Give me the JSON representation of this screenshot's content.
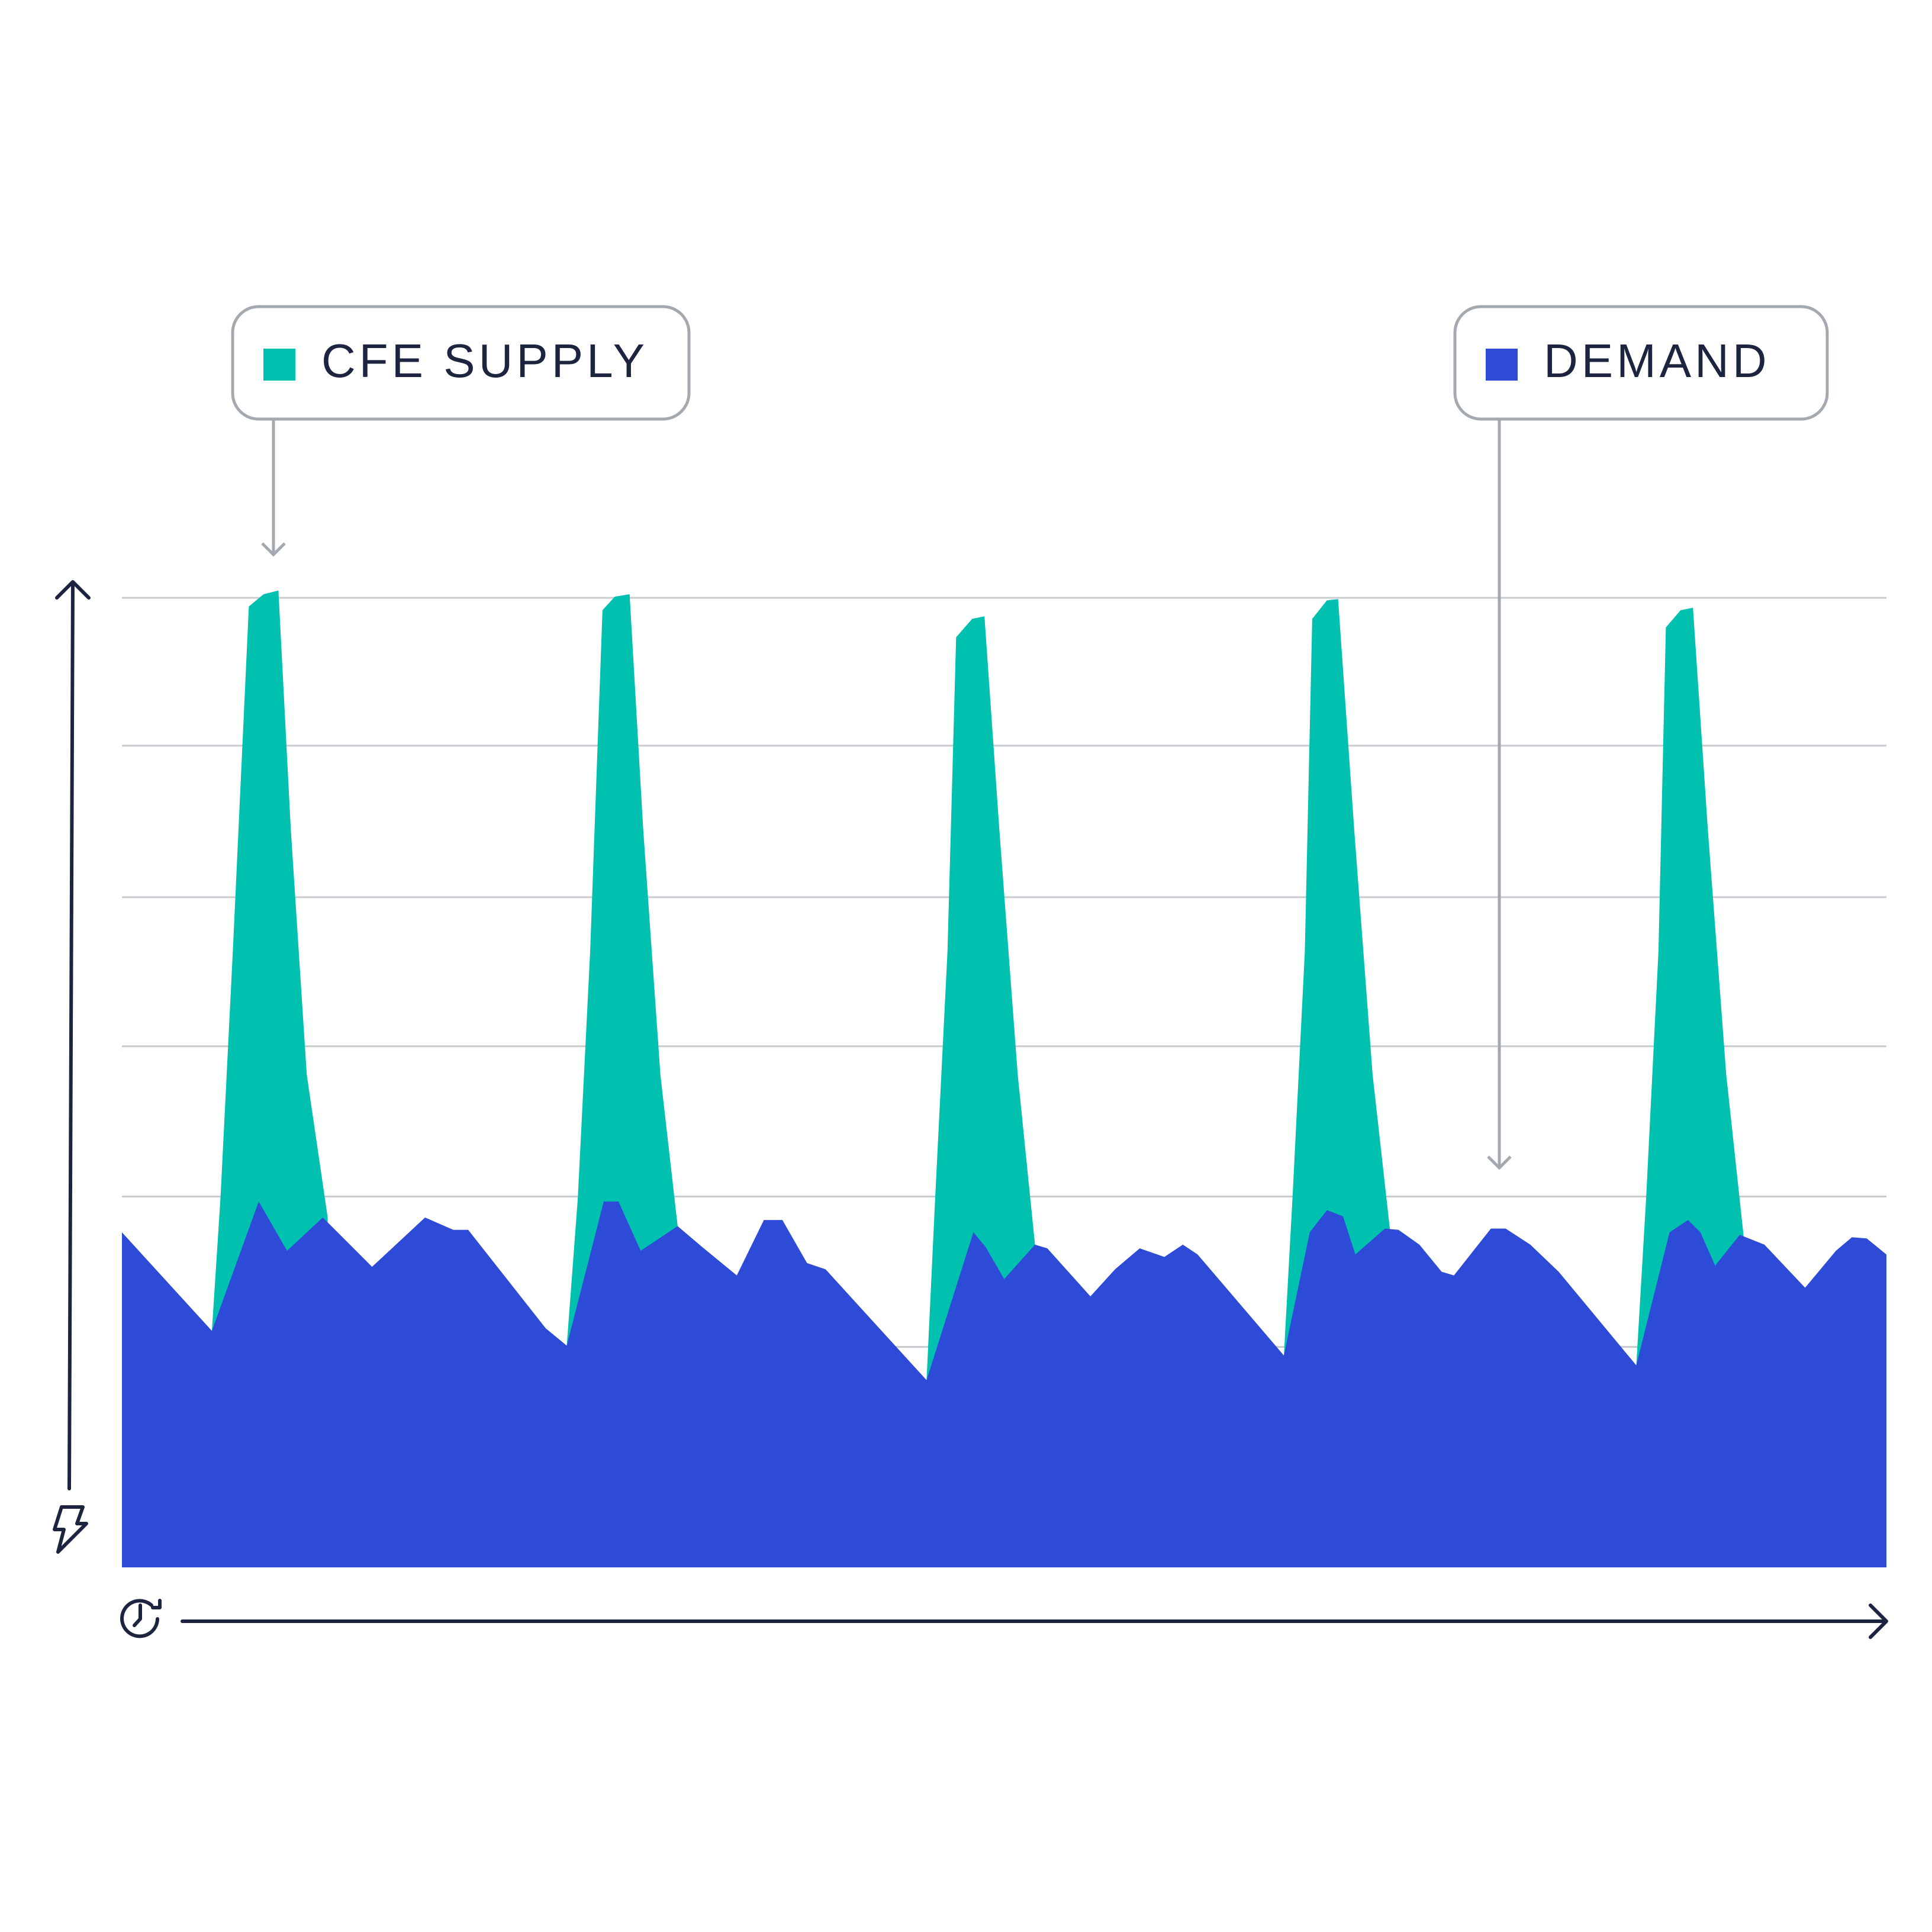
{
  "chart_data": {
    "type": "area",
    "xlim": [
      0,
      1432
    ],
    "ylim": [
      0,
      800
    ],
    "yticks": [
      179,
      301,
      423,
      544,
      667,
      787
    ],
    "grid": true,
    "series": [
      {
        "name": "CFE SUPPLY",
        "color": "#00c0b0",
        "x": [
          73,
          80,
          90,
          103,
          115,
          127,
          137,
          150,
          167,
          null,
          361,
          370,
          380,
          390,
          400,
          412,
          423,
          437,
          451,
          null,
          653,
          660,
          670,
          677,
          690,
          700,
          712,
          727,
          741,
          null,
          943,
          950,
          960,
          966,
          978,
          987,
          1000,
          1015,
          1029,
          null,
          1229,
          1237,
          1247,
          1253,
          1265,
          1275,
          1287,
          1302,
          1316
        ],
        "values": [
          192,
          300,
          500,
          780,
          790,
          793,
          600,
          400,
          284,
          null,
          180,
          300,
          500,
          777,
          788,
          790,
          600,
          400,
          277,
          null,
          152,
          300,
          500,
          755,
          770,
          772,
          600,
          400,
          262,
          null,
          172,
          300,
          500,
          770,
          785,
          786,
          600,
          400,
          275,
          null,
          164,
          300,
          500,
          763,
          777,
          779,
          600,
          400,
          270
        ]
      },
      {
        "name": "DEMAND",
        "color": "#2e4bd8",
        "x": [
          0,
          73,
          111,
          134,
          163,
          203,
          246,
          269,
          281,
          344,
          361,
          391,
          403,
          421,
          451,
          471,
          499,
          521,
          536,
          556,
          571,
          653,
          691,
          701,
          716,
          741,
          751,
          786,
          806,
          826,
          846,
          861,
          873,
          943,
          964,
          978,
          991,
          1001,
          1025,
          1036,
          1053,
          1071,
          1081,
          1111,
          1123,
          1143,
          1166,
          1229,
          1256,
          1271,
          1281,
          1293,
          1313,
          1333,
          1366,
          1391,
          1404,
          1416,
          1432
        ],
        "values": [
          272,
          192,
          297,
          257,
          284,
          244,
          284,
          274,
          274,
          194,
          180,
          297,
          297,
          257,
          277,
          260,
          237,
          282,
          282,
          247,
          242,
          152,
          272,
          260,
          234,
          262,
          259,
          220,
          242,
          259,
          252,
          262,
          254,
          172,
          272,
          290,
          285,
          254,
          275,
          274,
          262,
          240,
          237,
          275,
          275,
          262,
          240,
          164,
          272,
          282,
          272,
          245,
          270,
          262,
          227,
          257,
          268,
          267,
          254
        ]
      }
    ]
  }
}
